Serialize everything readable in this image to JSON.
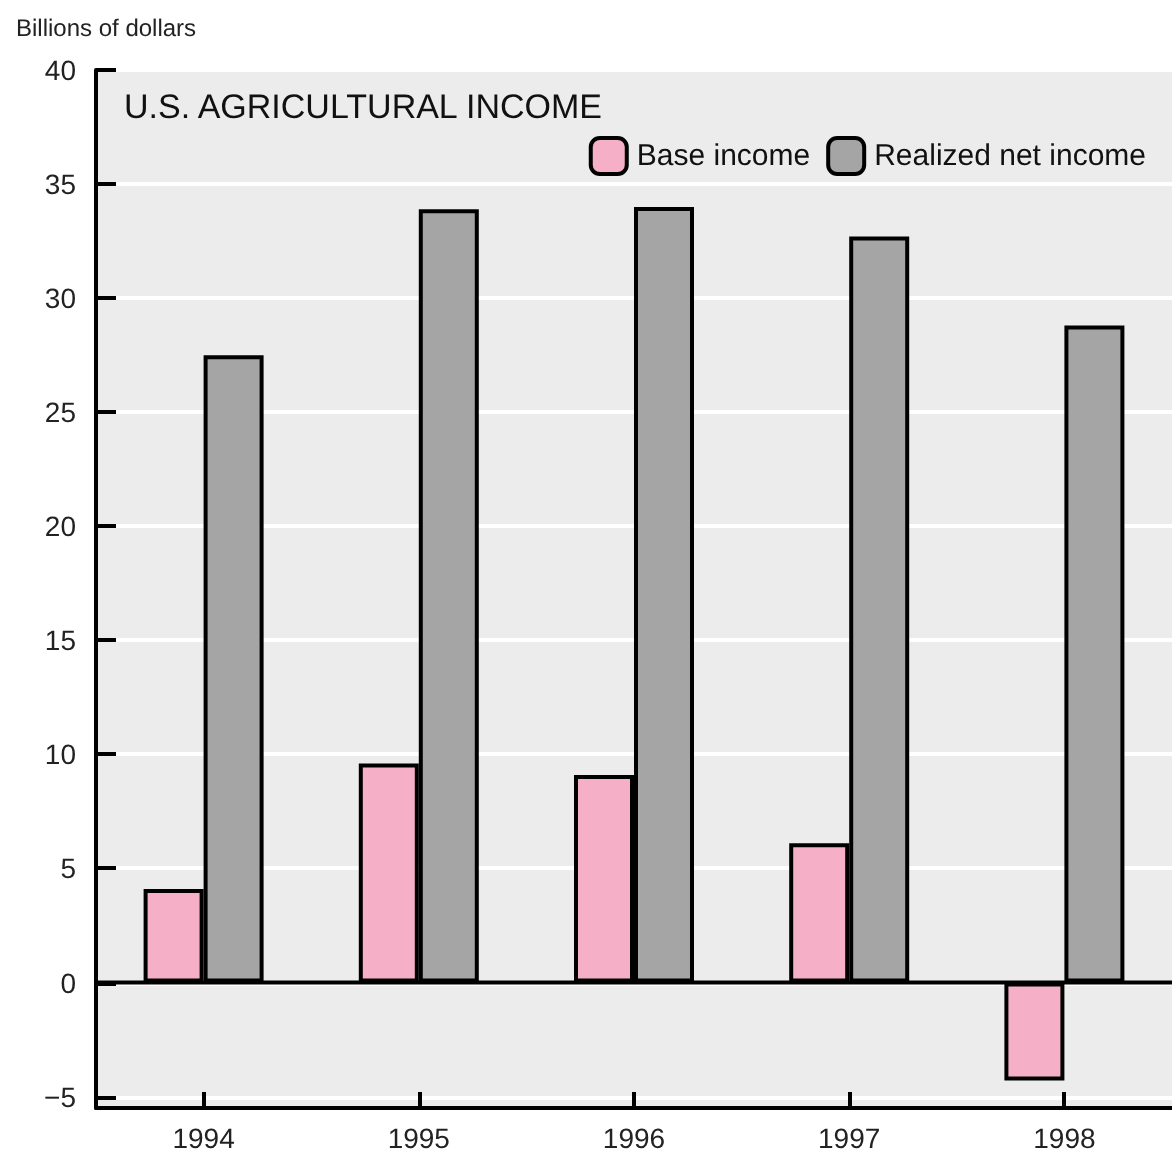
{
  "chart_data": {
    "type": "bar",
    "title": "U.S. AGRICULTURAL INCOME",
    "ylabel": "Billions of dollars",
    "categories": [
      "1994",
      "1995",
      "1996",
      "1997",
      "1998"
    ],
    "series": [
      {
        "name": "Base income",
        "color": "#f5b0c8",
        "values": [
          4.1,
          9.6,
          9.1,
          6.1,
          -4.3
        ]
      },
      {
        "name": "Realized net income",
        "color": "#a5a5a5",
        "values": [
          27.5,
          33.9,
          34,
          32.7,
          28.8
        ]
      }
    ],
    "ylim": [
      -5.5,
      40
    ],
    "yticks": [
      {
        "value": -5,
        "label": "−5"
      },
      0,
      5,
      10,
      15,
      20,
      25,
      30,
      35,
      40
    ],
    "grid": "y",
    "legend": "top right"
  }
}
